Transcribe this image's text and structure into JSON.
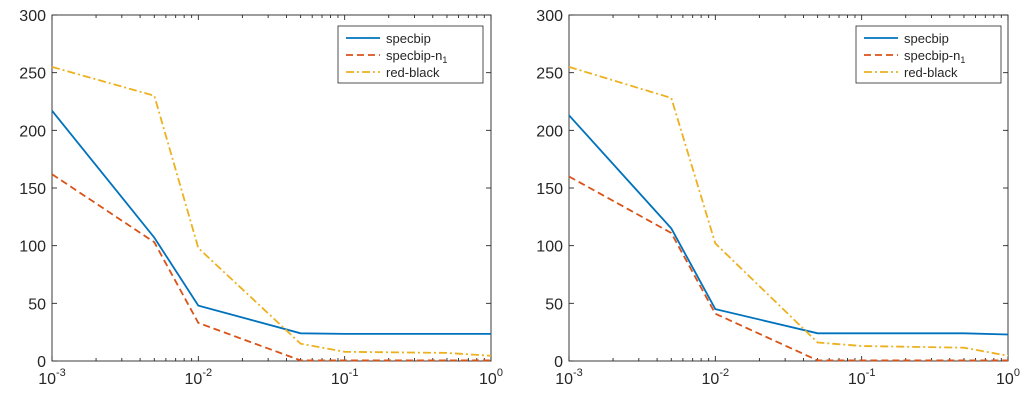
{
  "chart_data": [
    {
      "type": "line",
      "title": "",
      "xlabel": "",
      "ylabel": "",
      "xscale": "log",
      "xlim": [
        0.001,
        1
      ],
      "ylim": [
        0,
        300
      ],
      "yticks": [
        0,
        50,
        100,
        150,
        200,
        250,
        300
      ],
      "xticks": [
        {
          "value": 0.001,
          "base": "10",
          "exp": "-3"
        },
        {
          "value": 0.01,
          "base": "10",
          "exp": "-2"
        },
        {
          "value": 0.1,
          "base": "10",
          "exp": "-1"
        },
        {
          "value": 1,
          "base": "10",
          "exp": "0"
        }
      ],
      "grid": false,
      "legend_position": "top-right",
      "x": [
        0.001,
        0.005,
        0.01,
        0.05,
        0.1,
        0.5,
        1
      ],
      "series": [
        {
          "name": "specbip",
          "name_sub": "",
          "color": "#0072BD",
          "dash": "solid",
          "values": [
            217,
            107,
            48,
            24,
            23.5,
            23.5,
            23.5
          ]
        },
        {
          "name": "specbip-n",
          "name_sub": "1",
          "color": "#D95319",
          "dash": "dashed",
          "values": [
            162,
            103,
            33,
            0.5,
            0.5,
            0.5,
            0.5
          ]
        },
        {
          "name": "red-black",
          "name_sub": "",
          "color": "#EDB120",
          "dash": "dashdot",
          "values": [
            255,
            230,
            98,
            15,
            8,
            7,
            4.5
          ]
        }
      ]
    },
    {
      "type": "line",
      "title": "",
      "xlabel": "",
      "ylabel": "",
      "xscale": "log",
      "xlim": [
        0.001,
        1
      ],
      "ylim": [
        0,
        300
      ],
      "yticks": [
        0,
        50,
        100,
        150,
        200,
        250,
        300
      ],
      "xticks": [
        {
          "value": 0.001,
          "base": "10",
          "exp": "-3"
        },
        {
          "value": 0.01,
          "base": "10",
          "exp": "-2"
        },
        {
          "value": 0.1,
          "base": "10",
          "exp": "-1"
        },
        {
          "value": 1,
          "base": "10",
          "exp": "0"
        }
      ],
      "grid": false,
      "legend_position": "top-right",
      "x": [
        0.001,
        0.005,
        0.01,
        0.05,
        0.1,
        0.5,
        1
      ],
      "series": [
        {
          "name": "specbip",
          "name_sub": "",
          "color": "#0072BD",
          "dash": "solid",
          "values": [
            213,
            115,
            45,
            24,
            24,
            24,
            23
          ]
        },
        {
          "name": "specbip-n",
          "name_sub": "1",
          "color": "#D95319",
          "dash": "dashed",
          "values": [
            160,
            111,
            41,
            0.5,
            0.5,
            0.5,
            0.5
          ]
        },
        {
          "name": "red-black",
          "name_sub": "",
          "color": "#EDB120",
          "dash": "dashdot",
          "values": [
            255,
            228,
            102,
            16,
            13,
            11.5,
            4.5
          ]
        }
      ]
    }
  ]
}
